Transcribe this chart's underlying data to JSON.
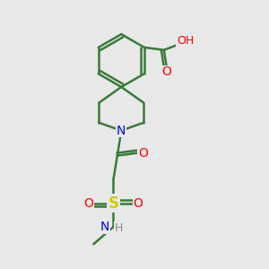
{
  "bg_color": "#e8e8e8",
  "bond_color": "#3a7a3a",
  "bond_width": 1.8,
  "atom_colors": {
    "O": "#ff0000",
    "N": "#0000ff",
    "S": "#cccc00",
    "C": "#3a7a3a",
    "H": "#888888"
  },
  "font_size": 9,
  "fig_size": [
    3.0,
    3.0
  ],
  "dpi": 100,
  "xlim": [
    0,
    10
  ],
  "ylim": [
    0,
    10
  ]
}
